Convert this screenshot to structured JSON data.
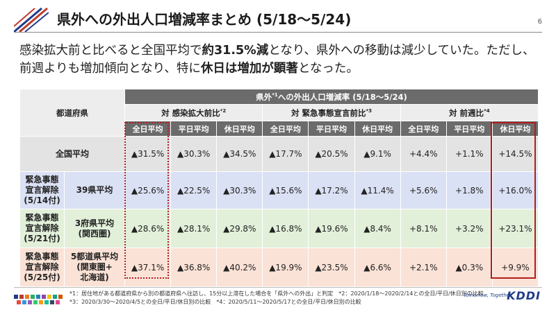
{
  "header": {
    "title": "県外への外出人口増減率まとめ (5/18～5/24)",
    "page_number": "6"
  },
  "lead": {
    "p1": "感染拡大前と比べると全国平均で",
    "b1": "約31.5%減",
    "p2": "となり、県外への移動は減少していた。ただし、前週よりも増加傾向となり、特に",
    "b2": "休日は増加が顕著",
    "p3": "となった。"
  },
  "table": {
    "pref_header": "都道府県",
    "top_header_pre": "県外",
    "top_header_sup": "*1",
    "top_header_post": "への外出人口増減率 (5/18～5/24)",
    "groups": [
      {
        "label": "対 感染拡大前比",
        "sup": "*2"
      },
      {
        "label": "対 緊急事態宣言前比",
        "sup": "*3"
      },
      {
        "label": "対 前週比",
        "sup": "*4"
      }
    ],
    "subcols": [
      "全日平均",
      "平日平均",
      "休日平均",
      "全日平均",
      "平日平均",
      "休日平均",
      "全日平均",
      "平日平均",
      "休日平均"
    ],
    "national": {
      "label": "全国平均",
      "values": [
        "▲31.5%",
        "▲30.3%",
        "▲34.5%",
        "▲17.7%",
        "▲20.5%",
        "▲9.1%",
        "+4.4%",
        "+1.1%",
        "+14.5%"
      ]
    },
    "rows": [
      {
        "group": [
          "緊急事態",
          "宣言解除",
          "(5/14付)"
        ],
        "region": [
          "39県平均"
        ],
        "values": [
          "▲25.6%",
          "▲22.5%",
          "▲30.3%",
          "▲15.6%",
          "▲17.2%",
          "▲11.4%",
          "+5.6%",
          "+1.8%",
          "+16.0%"
        ]
      },
      {
        "group": [
          "緊急事態",
          "宣言解除",
          "(5/21付)"
        ],
        "region": [
          "3府県平均",
          "(関西圏)"
        ],
        "values": [
          "▲28.6%",
          "▲28.1%",
          "▲29.8%",
          "▲16.8%",
          "▲19.6%",
          "▲8.4%",
          "+8.1%",
          "+3.2%",
          "+23.1%"
        ]
      },
      {
        "group": [
          "緊急事態",
          "宣言解除",
          "(5/25付)"
        ],
        "region": [
          "5都道県平均",
          "(関東圏+",
          "北海道)"
        ],
        "values": [
          "▲37.1%",
          "▲36.8%",
          "▲40.2%",
          "▲19.9%",
          "▲23.5%",
          "▲6.6%",
          "+2.1%",
          "▲0.3%",
          "+9.9%"
        ]
      }
    ]
  },
  "footer": {
    "note_line1": "*1：居住地がある都道府県から別の都道府県へ往訪し、15分以上滞在した場合を「県外への外出」と判定　*2：2020/1/18～2020/2/14との全日/平日/休日別の比較",
    "note_line2": "*3：2020/3/30～2020/4/5との全日/平日/休日別の比較　*4：2020/5/11～2020/5/17との全日/平日/休日別の比較",
    "logo_word": "KDDI",
    "logo_tagline": "Tomorrow, Together"
  },
  "colors": {
    "header_gray": "#6b6b6b",
    "row_national": "#e3e3e3",
    "row_39": "#dbe1f4",
    "row_3": "#e2f0da",
    "row_5": "#fbe2d6",
    "highlight_red": "#b11d1d",
    "logo_blue": "#1f3c88"
  }
}
